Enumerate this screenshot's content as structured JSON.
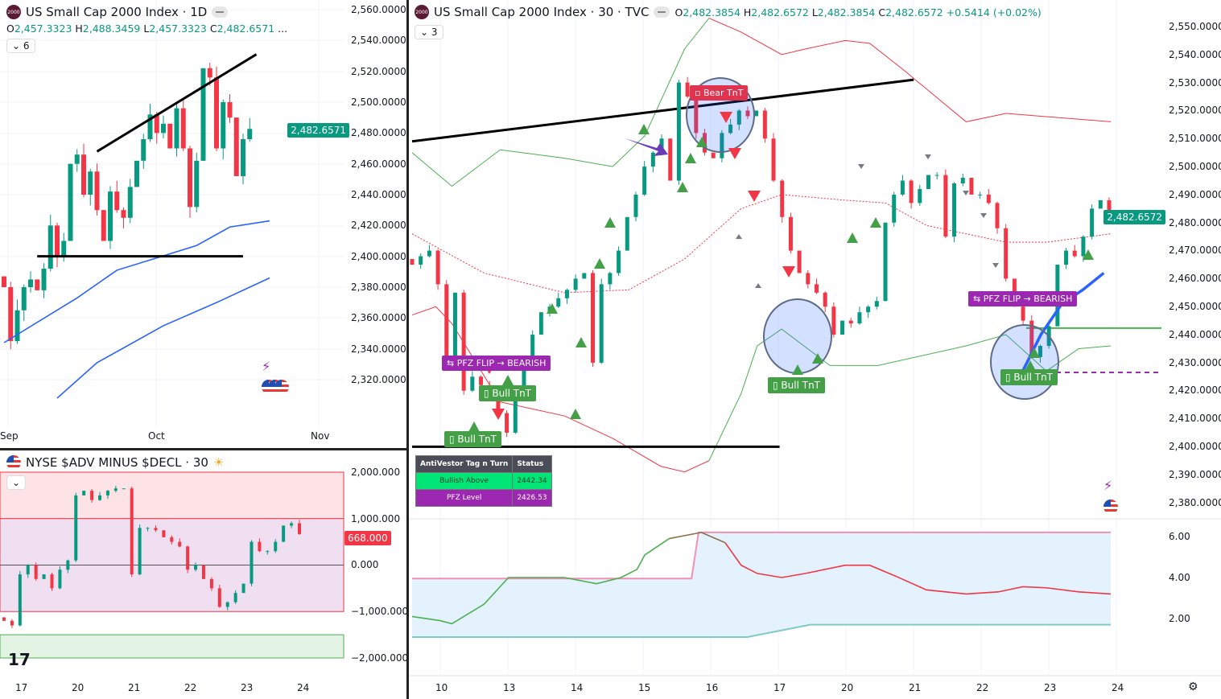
{
  "left_top": {
    "title": "US Small Cap 2000 Index · 1D",
    "logo": "2000",
    "collapse": "6",
    "o": "2,457.3323",
    "h": "2,488.3459",
    "l": "2,457.3323",
    "c": "2,482.6571",
    "more": "...",
    "price_ticks": [
      "2,560.0000",
      "2,540.0000",
      "2,520.0000",
      "2,500.0000",
      "2,480.0000",
      "2,460.0000",
      "2,440.0000",
      "2,420.0000",
      "2,400.0000",
      "2,380.0000",
      "2,360.0000",
      "2,340.0000",
      "2,320.0000"
    ],
    "last_price": "2,482.6571",
    "time_ticks": [
      "Sep",
      "Oct",
      "Nov"
    ]
  },
  "left_bottom": {
    "title": "NYSE $ADV MINUS $DECL · 30",
    "ticks": [
      "2,000.000",
      "1,000.000",
      "0.000",
      "−1,000.000",
      "−2,000.000"
    ],
    "last_value": "668.000",
    "time_ticks": [
      "17",
      "20",
      "21",
      "22",
      "23",
      "24"
    ]
  },
  "right": {
    "title": "US Small Cap 2000 Index · 30 · TVC",
    "logo": "2000",
    "collapse": "3",
    "o": "2,482.3854",
    "h": "2,482.6572",
    "l": "2,482.3854",
    "c": "2,482.6572",
    "change": "+0.5414 (+0.02%)",
    "price_ticks": [
      "2,550.0000",
      "2,540.0000",
      "2,530.0000",
      "2,520.0000",
      "2,510.0000",
      "2,500.0000",
      "2,490.0000",
      "2,480.0000",
      "2,470.0000",
      "2,460.0000",
      "2,450.0000",
      "2,440.0000",
      "2,430.0000",
      "2,420.0000",
      "2,410.0000",
      "2,400.0000",
      "2,390.0000",
      "2,380.0000"
    ],
    "last_price": "2,482.6572",
    "osc_ticks": [
      "6.00",
      "4.00",
      "2.00"
    ],
    "time_ticks": [
      "10",
      "13",
      "14",
      "15",
      "16",
      "17",
      "20",
      "21",
      "22",
      "23",
      "24"
    ],
    "labels": {
      "bear": "Bear TnT",
      "bull1": "Bull TnT",
      "bull2": "Bull TnT",
      "bull3": "Bull TnT",
      "bull4": "Bull TnT",
      "pfz1": "PFZ FLIP → BEARISH",
      "pfz2": "PFZ FLIP → BEARISH"
    },
    "table": {
      "h1": "AntiVestor Tag n Turn",
      "h2": "Status",
      "r1c1": "Bullish Above",
      "r1c2": "2442.34",
      "r2c1": "PFZ Level",
      "r2c2": "2426.53"
    }
  },
  "colors": {
    "up": "#089981",
    "down": "#f23645",
    "ma": "#2962ff",
    "green": "#4caf50",
    "purple": "#9c27b0"
  },
  "chart_data": [
    {
      "type": "candlestick",
      "name": "US Small Cap 2000 Index 1D",
      "ylim": [
        2310,
        2565
      ],
      "closes": [
        2380,
        2345,
        2365,
        2380,
        2385,
        2378,
        2392,
        2420,
        2400,
        2410,
        2460,
        2466,
        2440,
        2455,
        2430,
        2410,
        2442,
        2430,
        2425,
        2445,
        2462,
        2476,
        2492,
        2480,
        2486,
        2470,
        2496,
        2470,
        2432,
        2462,
        2522,
        2516,
        2470,
        2500,
        2490,
        2452,
        2476,
        2482.66
      ],
      "ma_fast": [
        [
          0,
          2344
        ],
        [
          11,
          2373
        ],
        [
          17,
          2391
        ],
        [
          23,
          2399
        ],
        [
          29,
          2407
        ],
        [
          34,
          2419
        ],
        [
          40,
          2423
        ]
      ],
      "ma_slow": [
        [
          8,
          2308
        ],
        [
          14,
          2331
        ],
        [
          24,
          2355
        ],
        [
          32,
          2370
        ],
        [
          40,
          2386
        ]
      ],
      "trendline": [
        [
          14,
          2468
        ],
        [
          38,
          2531
        ]
      ],
      "support": [
        [
          5,
          2400
        ],
        [
          36,
          2400
        ]
      ]
    },
    {
      "type": "candlestick",
      "name": "NYSE $ADV MINUS $DECL 30",
      "ylim": [
        -2500000,
        2300000
      ],
      "closes": [
        -1200000,
        -1300000,
        -200000,
        0,
        -300000,
        -200000,
        -500000,
        -100000,
        100000,
        1500000,
        1600000,
        1400000,
        1500000,
        1600000,
        1650000,
        1650000,
        -200000,
        800000,
        800000,
        750000,
        600000,
        500000,
        400000,
        -100000,
        0,
        -300000,
        -500000,
        -900000,
        -800000,
        -600000,
        -400000,
        500000,
        300000,
        300000,
        500000,
        850000,
        900000,
        668000
      ],
      "bands": {
        "upper": [
          1000000,
          2000000
        ],
        "mid": [
          -1000000,
          1000000
        ],
        "lower": [
          -2000000,
          -1500000
        ]
      }
    },
    {
      "type": "candlestick",
      "name": "US Small Cap 2000 Index 30",
      "ylim": [
        2372,
        2560
      ],
      "closes": [
        2465,
        2468,
        2470,
        2458,
        2428,
        2455,
        2420,
        2425,
        2422,
        2420,
        2412,
        2405,
        2420,
        2432,
        2440,
        2448,
        2450,
        2453,
        2456,
        2460,
        2462,
        2430,
        2458,
        2462,
        2470,
        2482,
        2490,
        2500,
        2505,
        2510,
        2495,
        2530,
        2525,
        2512,
        2505,
        2503,
        2512,
        2515,
        2520,
        2518,
        2520,
        2510,
        2495,
        2482,
        2470,
        2462,
        2458,
        2455,
        2450,
        2440,
        2445,
        2444,
        2448,
        2450,
        2452,
        2480,
        2490,
        2495,
        2487,
        2492,
        2497,
        2497,
        2475,
        2494,
        2496,
        2490,
        2490,
        2487,
        2478,
        2460,
        2450,
        2445,
        2432,
        2436,
        2443,
        2465,
        2470,
        2468,
        2475,
        2485,
        2488,
        2482.66
      ],
      "upper_band": [
        [
          0,
          2505
        ],
        [
          5.7,
          2493
        ],
        [
          12.6,
          2506
        ],
        [
          21.8,
          2503
        ],
        [
          28.7,
          2500
        ],
        [
          33.3,
          2511
        ],
        [
          39,
          2542
        ],
        [
          42.5,
          2553
        ],
        [
          47.1,
          2548
        ],
        [
          52.9,
          2540
        ],
        [
          56.3,
          2542
        ],
        [
          62,
          2545
        ],
        [
          65.5,
          2544
        ],
        [
          70.1,
          2535
        ],
        [
          79.3,
          2516
        ],
        [
          85,
          2519
        ],
        [
          100,
          2516
        ]
      ],
      "lower_band": [
        [
          0,
          2447
        ],
        [
          3.4,
          2450
        ],
        [
          5.7,
          2444
        ],
        [
          12.6,
          2416
        ],
        [
          21.8,
          2411
        ],
        [
          28.7,
          2403
        ],
        [
          35.6,
          2393
        ],
        [
          39,
          2391
        ],
        [
          42.5,
          2395
        ],
        [
          47.1,
          2419
        ],
        [
          49.4,
          2436
        ],
        [
          52.9,
          2442
        ],
        [
          59.8,
          2429
        ],
        [
          66.7,
          2429
        ],
        [
          79.3,
          2436
        ],
        [
          85,
          2440
        ],
        [
          90.8,
          2427
        ],
        [
          95.4,
          2435
        ],
        [
          100,
          2436
        ]
      ],
      "basis": [
        [
          0,
          2476
        ],
        [
          10.3,
          2462
        ],
        [
          21.8,
          2455
        ],
        [
          31,
          2456
        ],
        [
          39,
          2467
        ],
        [
          47.1,
          2485
        ],
        [
          52.9,
          2490
        ],
        [
          62,
          2488
        ],
        [
          67.8,
          2487
        ],
        [
          73.6,
          2479
        ],
        [
          85,
          2473
        ],
        [
          90.8,
          2473
        ],
        [
          100,
          2476
        ]
      ],
      "trendline": [
        [
          0,
          2509
        ],
        [
          71.8,
          2531
        ]
      ],
      "support": [
        [
          0,
          2400
        ],
        [
          52.6,
          2400
        ]
      ],
      "bullish_above": 2442.34,
      "pfz_level": 2426.53,
      "ma": [
        [
          87,
          2425
        ],
        [
          90,
          2440
        ],
        [
          93,
          2451
        ],
        [
          96,
          2456
        ],
        [
          99,
          2462
        ]
      ]
    },
    {
      "type": "line",
      "name": "oscillator",
      "ylim": [
        0.2,
        6.6
      ],
      "main": [
        [
          0,
          2.1
        ],
        [
          4,
          1.9
        ],
        [
          5.7,
          1.75
        ],
        [
          10.3,
          2.7
        ],
        [
          13.8,
          4.0
        ],
        [
          21.8,
          4.0
        ],
        [
          26.4,
          3.7
        ],
        [
          29.9,
          4.0
        ],
        [
          32.2,
          4.4
        ],
        [
          33.3,
          5.1
        ],
        [
          36.8,
          5.9
        ],
        [
          41.4,
          6.2
        ],
        [
          44.8,
          5.7
        ],
        [
          47.1,
          4.6
        ],
        [
          49.4,
          4.2
        ],
        [
          52.9,
          4.0
        ],
        [
          56.3,
          4.2
        ],
        [
          62,
          4.6
        ],
        [
          65.5,
          4.6
        ],
        [
          69,
          4.1
        ],
        [
          73.6,
          3.4
        ],
        [
          79.3,
          3.2
        ],
        [
          83.9,
          3.3
        ],
        [
          87.4,
          3.55
        ],
        [
          90.8,
          3.5
        ],
        [
          95.4,
          3.3
        ],
        [
          100,
          3.2
        ]
      ],
      "upper": [
        [
          0,
          3.95
        ],
        [
          40,
          3.95
        ],
        [
          41,
          6.2
        ],
        [
          100,
          6.2
        ]
      ],
      "lower": [
        [
          0,
          1.1
        ],
        [
          48,
          1.1
        ],
        [
          57,
          1.7
        ],
        [
          100,
          1.7
        ]
      ]
    }
  ]
}
